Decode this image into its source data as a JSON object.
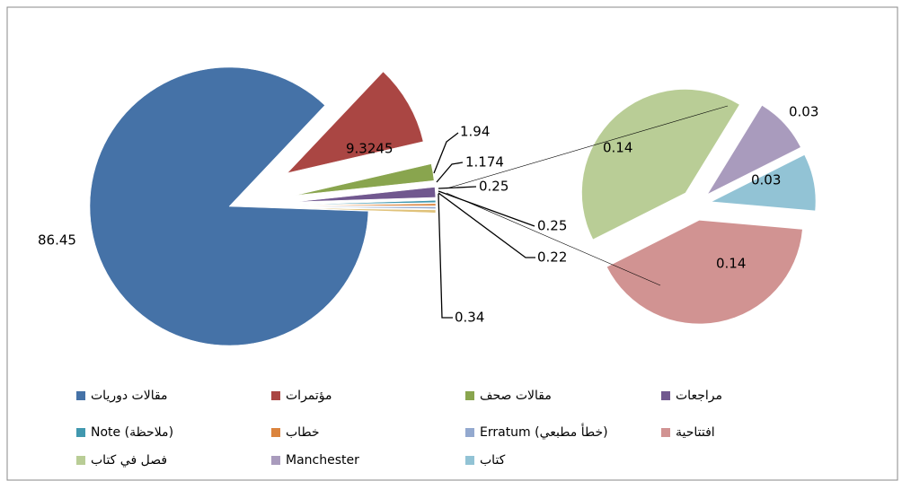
{
  "chart_data": {
    "type": "pie-of-pie",
    "categories": [
      "مقالات دوريات",
      "مؤتمرات",
      "مقالات صحف",
      "مراجعات",
      "Note (ملاحظة)",
      "خطاب",
      "Erratum (خطأ مطبعي)",
      "افتتاحية",
      "فصل في كتاب",
      "Manchester",
      "كتاب"
    ],
    "values": [
      86.45,
      9.3245,
      1.94,
      1.174,
      0.25,
      0.25,
      0.22,
      0.14,
      0.14,
      0.03,
      0.03
    ],
    "colors": [
      "#4572A7",
      "#AA4643",
      "#89A54E",
      "#71588F",
      "#4198AF",
      "#DB843D",
      "#93A9CF",
      "#D19392",
      "#B9CD96",
      "#A99BBD",
      "#92C3D5"
    ],
    "secondary_total": 0.34,
    "legend": "bottom"
  }
}
